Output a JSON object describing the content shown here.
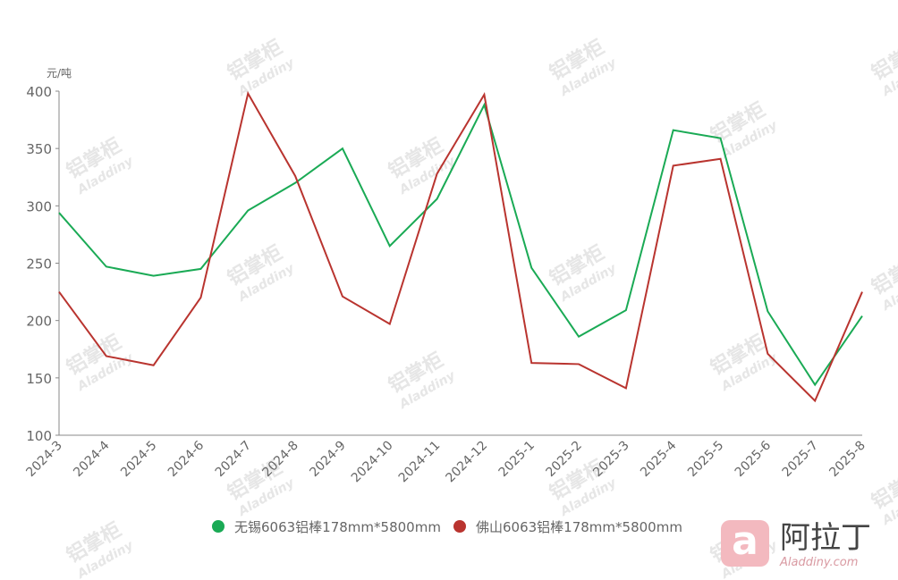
{
  "chart_data": {
    "type": "line",
    "y_unit": "元/吨",
    "categories": [
      "2024-3",
      "2024-4",
      "2024-5",
      "2024-6",
      "2024-7",
      "2024-8",
      "2024-9",
      "2024-10",
      "2024-11",
      "2024-12",
      "2025-1",
      "2025-2",
      "2025-3",
      "2025-4",
      "2025-5",
      "2025-6",
      "2025-7",
      "2025-8"
    ],
    "series": [
      {
        "name": "无锡6063铝棒178mm*5800mm",
        "color": "#1aaa55",
        "values": [
          294,
          247,
          239,
          245,
          296,
          320,
          350,
          265,
          306,
          388,
          246,
          186,
          209,
          366,
          359,
          208,
          144,
          204
        ]
      },
      {
        "name": "佛山6063铝棒178mm*5800mm",
        "color": "#b9342f",
        "values": [
          225,
          169,
          161,
          220,
          398,
          326,
          221,
          197,
          328,
          397,
          163,
          162,
          141,
          335,
          341,
          171,
          130,
          225
        ]
      }
    ],
    "ylim": [
      100,
      400
    ],
    "yticks": [
      100,
      150,
      200,
      250,
      300,
      350,
      400
    ],
    "grid": false,
    "legend": "bottom"
  },
  "watermark": {
    "text": "铝掌柜",
    "sub": "Aladdiny"
  },
  "brand": {
    "name": "阿拉丁",
    "site": "Aladdiny.com"
  }
}
